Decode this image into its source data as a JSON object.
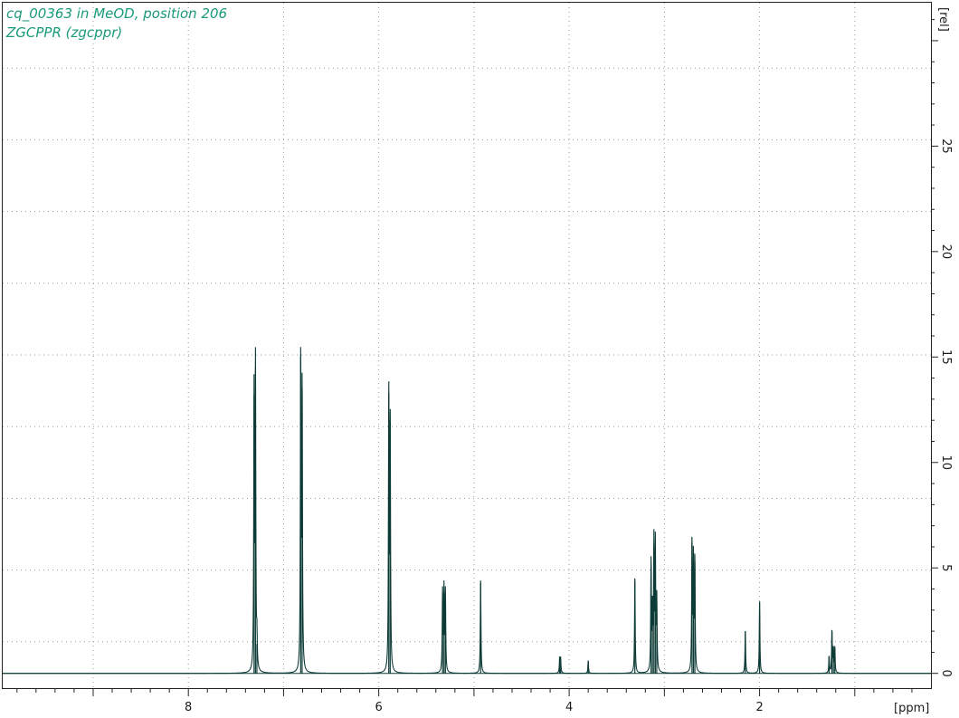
{
  "header": {
    "line1": "cq_00363 in MeOD, position 206",
    "line2": "ZGCPPR (zgcppr)"
  },
  "colors": {
    "spectrum": "#0d3b36",
    "title": "#1a9a7a",
    "grid": "#9a9a9a"
  },
  "chart_data": {
    "type": "line",
    "title": "cq_00363 in MeOD, position 206",
    "subtitle": "ZGCPPR (zgcppr)",
    "xlabel": "[ppm]",
    "ylabel": "[rel]",
    "xlim": [
      9.95,
      0.2
    ],
    "ylim": [
      -0.7,
      31.8
    ],
    "x_reversed": true,
    "x_ticks": [
      8,
      6,
      4,
      2
    ],
    "x_tick_labels": [
      "8",
      "6",
      "4",
      "2"
    ],
    "y_ticks": [
      0,
      5,
      10,
      15,
      20,
      25
    ],
    "y_tick_labels": [
      "0",
      "5",
      "10",
      "15",
      "20",
      "25"
    ],
    "grid": true,
    "peaks": [
      {
        "ppm": 7.31,
        "height": 13.2
      },
      {
        "ppm": 7.295,
        "height": 14.5
      },
      {
        "ppm": 7.28,
        "height": 1.4
      },
      {
        "ppm": 6.82,
        "height": 15.0
      },
      {
        "ppm": 6.805,
        "height": 13.5
      },
      {
        "ppm": 5.895,
        "height": 13.3
      },
      {
        "ppm": 5.88,
        "height": 12.0
      },
      {
        "ppm": 5.33,
        "height": 3.8
      },
      {
        "ppm": 5.315,
        "height": 3.9
      },
      {
        "ppm": 5.3,
        "height": 3.8
      },
      {
        "ppm": 4.93,
        "height": 4.4
      },
      {
        "ppm": 4.1,
        "height": 0.7
      },
      {
        "ppm": 4.09,
        "height": 0.7
      },
      {
        "ppm": 3.8,
        "height": 0.6
      },
      {
        "ppm": 3.31,
        "height": 4.5
      },
      {
        "ppm": 3.14,
        "height": 5.2
      },
      {
        "ppm": 3.125,
        "height": 2.8
      },
      {
        "ppm": 3.11,
        "height": 6.1
      },
      {
        "ppm": 3.095,
        "height": 6.0
      },
      {
        "ppm": 3.08,
        "height": 3.4
      },
      {
        "ppm": 2.71,
        "height": 6.2
      },
      {
        "ppm": 2.695,
        "height": 5.4
      },
      {
        "ppm": 2.68,
        "height": 5.3
      },
      {
        "ppm": 2.15,
        "height": 2.0
      },
      {
        "ppm": 2.0,
        "height": 3.4
      },
      {
        "ppm": 1.27,
        "height": 0.8
      },
      {
        "ppm": 1.24,
        "height": 2.0
      },
      {
        "ppm": 1.225,
        "height": 1.1
      },
      {
        "ppm": 1.21,
        "height": 1.2
      }
    ]
  }
}
